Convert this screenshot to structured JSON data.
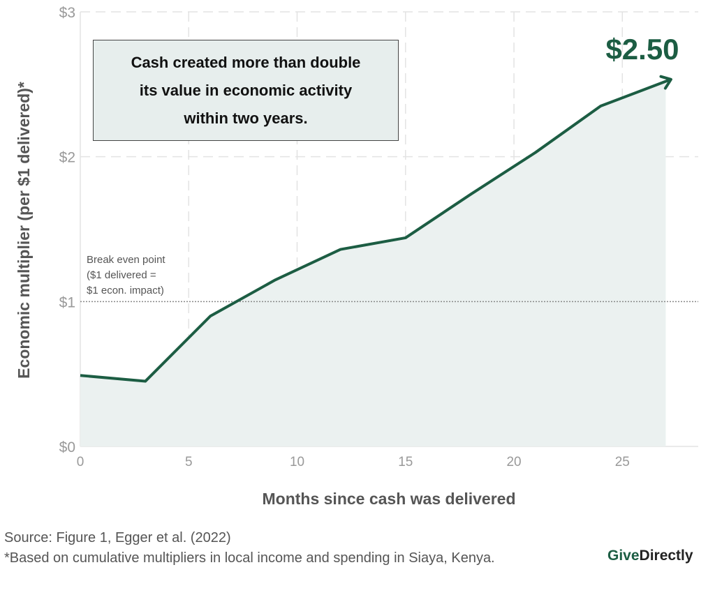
{
  "chart_data": {
    "type": "area",
    "title": "",
    "xlabel": "Months since cash was delivered",
    "ylabel": "Economic multiplier (per $1 delivered)*",
    "x": [
      0,
      3,
      6,
      9,
      12,
      15,
      18,
      21,
      24,
      27
    ],
    "values": [
      0.49,
      0.45,
      0.9,
      1.15,
      1.36,
      1.44,
      1.74,
      2.03,
      2.35,
      2.52
    ],
    "xlim": [
      0,
      28.5
    ],
    "ylim": [
      0,
      3
    ],
    "xticks": [
      0,
      5,
      10,
      15,
      20,
      25
    ],
    "xtick_labels": [
      "0",
      "5",
      "10",
      "15",
      "20",
      "25"
    ],
    "yticks": [
      0,
      1,
      2,
      3
    ],
    "ytick_labels": [
      "$0",
      "$1",
      "$2",
      "$3"
    ],
    "grid": true,
    "reference_line": {
      "y": 1,
      "label_lines": [
        "Break even point",
        "($1 delivered =",
        "$1 econ. impact)"
      ]
    },
    "end_label": "$2.50",
    "callout_lines": [
      "Cash created more than double",
      "its value in economic activity",
      "within two years."
    ],
    "colors": {
      "line": "#1c5d43",
      "fill": "#ebf1f0",
      "grid": "#e3e3e3"
    }
  },
  "footer": {
    "source": "Source: Figure 1, Egger et al. (2022)",
    "note": "*Based on cumulative multipliers in local income and spending in Siaya, Kenya."
  },
  "logo": {
    "give": "Give",
    "directly": "Directly"
  }
}
